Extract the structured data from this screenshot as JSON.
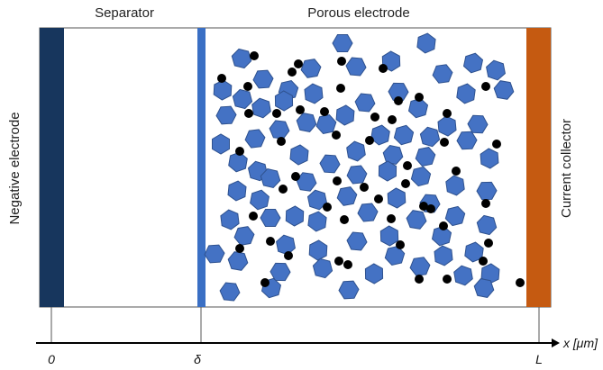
{
  "labels": {
    "separator": "Separator",
    "porous_electrode": "Porous electrode",
    "negative_electrode": "Negative electrode",
    "current_collector": "Current collector"
  },
  "axis": {
    "unit_label": "x [μm]",
    "tick_zero": "0",
    "tick_delta": "δ",
    "tick_L": "L"
  },
  "colors": {
    "negative_electrode": "#17365d",
    "separator_boundary": "#3a6fc4",
    "particle_fill": "#4472c4",
    "particle_stroke": "#2f528f",
    "dot": "#000000",
    "current_collector": "#c55a11",
    "outline": "#333333"
  }
}
